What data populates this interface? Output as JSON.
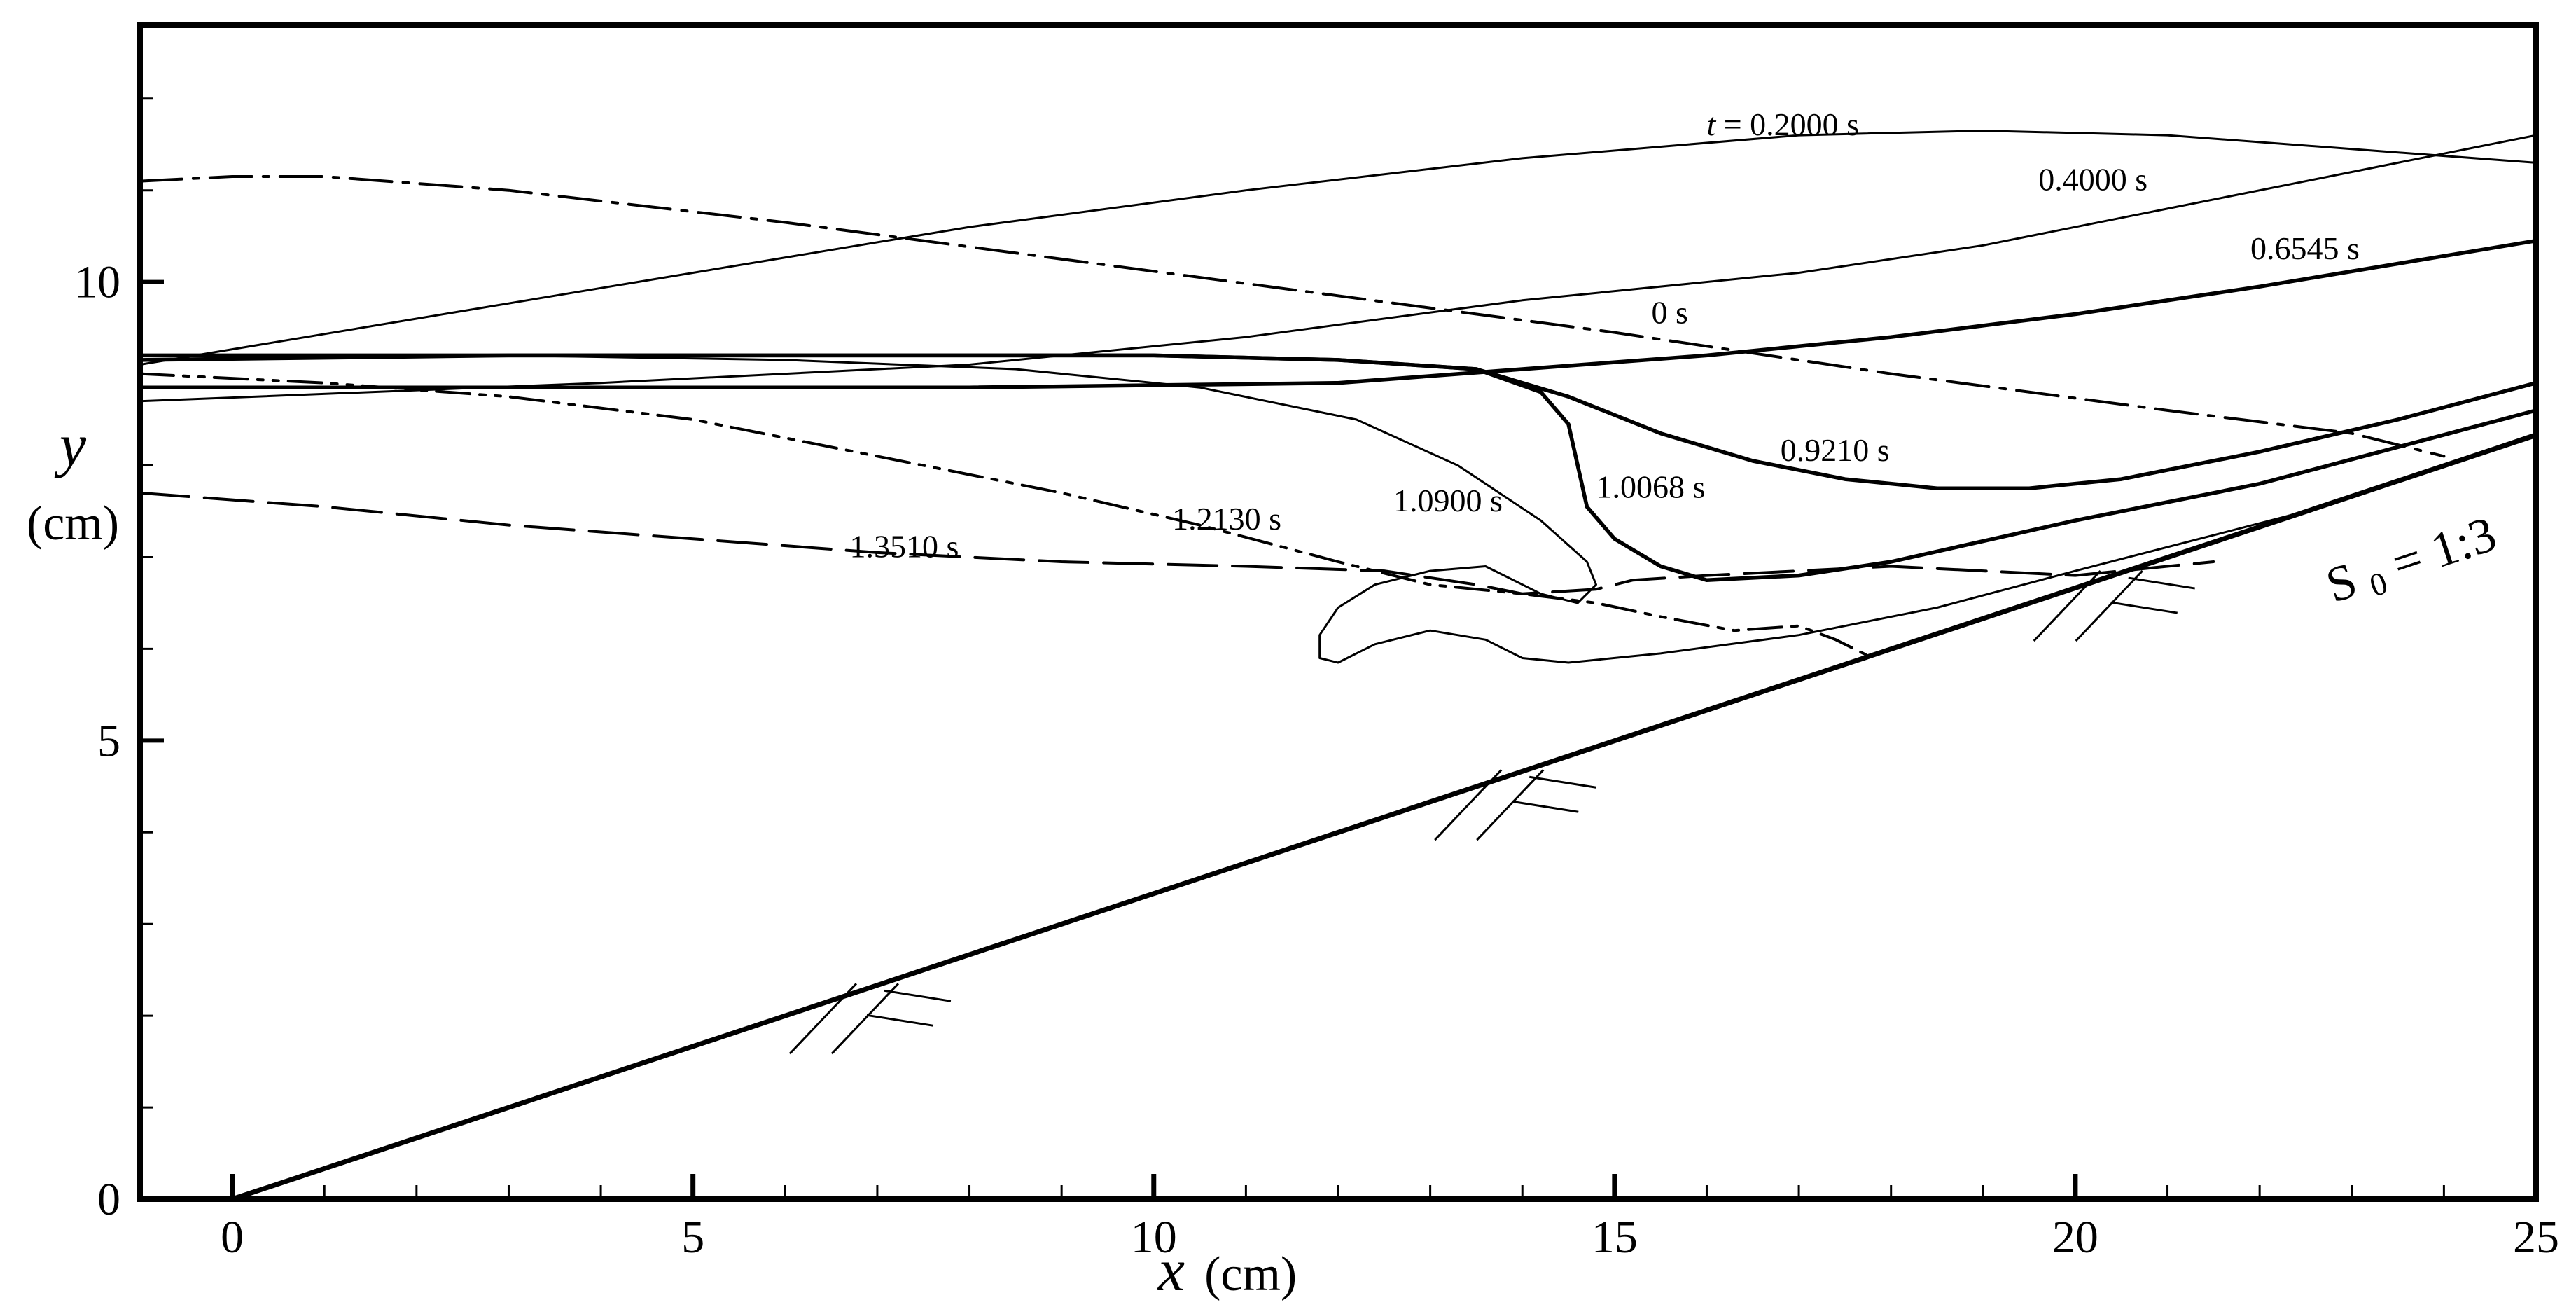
{
  "chart_data": {
    "type": "line",
    "title": "",
    "xlabel": {
      "symbol": "x",
      "unit": "(cm)"
    },
    "ylabel": {
      "symbol": "y",
      "unit": "(cm)"
    },
    "xlim": [
      -1,
      25
    ],
    "ylim": [
      0,
      12.8
    ],
    "xticks": [
      0,
      5,
      10,
      15,
      20,
      25
    ],
    "xtick_labels": [
      "0",
      "5",
      "10",
      "15",
      "20",
      "25"
    ],
    "yticks": [
      0,
      5,
      10
    ],
    "ytick_labels": [
      "0",
      "5",
      "10"
    ],
    "x_minor_step": 1,
    "y_minor_step": 1,
    "grid": false,
    "legend": "none",
    "slope_label": {
      "main": "S",
      "sub": "0",
      "rest": " = 1:3"
    },
    "bed": {
      "name": "slope bed",
      "x": [
        0,
        25
      ],
      "y": [
        0,
        8.33
      ]
    },
    "series": [
      {
        "name": "t = 0.2000  s",
        "label_prefix": "t",
        "label_text": " = 0.2000  s",
        "style": "thin",
        "points": [
          [
            -1,
            9.1
          ],
          [
            2,
            9.6
          ],
          [
            5,
            10.1
          ],
          [
            8,
            10.6
          ],
          [
            11,
            11.0
          ],
          [
            14,
            11.35
          ],
          [
            17,
            11.6
          ],
          [
            19,
            11.65
          ],
          [
            21,
            11.6
          ],
          [
            23,
            11.45
          ],
          [
            25,
            11.3
          ]
        ]
      },
      {
        "name": "0.4000 s",
        "label_text": "0.4000 s",
        "style": "thin",
        "points": [
          [
            -1,
            8.7
          ],
          [
            4,
            8.9
          ],
          [
            8,
            9.1
          ],
          [
            11,
            9.4
          ],
          [
            14,
            9.8
          ],
          [
            17,
            10.1
          ],
          [
            19,
            10.4
          ],
          [
            21,
            10.8
          ],
          [
            23,
            11.2
          ],
          [
            25,
            11.6
          ]
        ]
      },
      {
        "name": "0.6545 s",
        "label_text": "0.6545 s",
        "style": "thick",
        "points": [
          [
            -1,
            8.85
          ],
          [
            3,
            8.85
          ],
          [
            8,
            8.85
          ],
          [
            12,
            8.9
          ],
          [
            14,
            9.05
          ],
          [
            16,
            9.2
          ],
          [
            18,
            9.4
          ],
          [
            20,
            9.65
          ],
          [
            22,
            9.95
          ],
          [
            25,
            10.45
          ]
        ]
      },
      {
        "name": "0 s",
        "label_text": "0 s",
        "style": "dashdot",
        "points": [
          [
            -1,
            11.1
          ],
          [
            0,
            11.15
          ],
          [
            1,
            11.15
          ],
          [
            3,
            11.0
          ],
          [
            6,
            10.65
          ],
          [
            9,
            10.25
          ],
          [
            12,
            9.85
          ],
          [
            15,
            9.45
          ],
          [
            18,
            9.0
          ],
          [
            21,
            8.6
          ],
          [
            23,
            8.35
          ],
          [
            24,
            8.1
          ]
        ]
      },
      {
        "name": "0.9210 s",
        "label_text": "0.9210 s",
        "style": "thick",
        "points": [
          [
            -1,
            9.2
          ],
          [
            3,
            9.2
          ],
          [
            7,
            9.2
          ],
          [
            10,
            9.2
          ],
          [
            12,
            9.15
          ],
          [
            13.5,
            9.05
          ],
          [
            14.5,
            8.75
          ],
          [
            15.5,
            8.35
          ],
          [
            16.5,
            8.05
          ],
          [
            17.5,
            7.85
          ],
          [
            18.5,
            7.75
          ],
          [
            19.5,
            7.75
          ],
          [
            20.5,
            7.85
          ],
          [
            22,
            8.15
          ],
          [
            23.5,
            8.5
          ],
          [
            25,
            8.9
          ]
        ]
      },
      {
        "name": "1.0068 s",
        "label_text": "1.0068 s",
        "style": "thick",
        "points": [
          [
            -1,
            9.15
          ],
          [
            3,
            9.2
          ],
          [
            7,
            9.2
          ],
          [
            10,
            9.2
          ],
          [
            12,
            9.15
          ],
          [
            13.5,
            9.05
          ],
          [
            14.2,
            8.8
          ],
          [
            14.5,
            8.45
          ],
          [
            14.6,
            8.0
          ],
          [
            14.7,
            7.55
          ],
          [
            15.0,
            7.2
          ],
          [
            15.5,
            6.9
          ],
          [
            16,
            6.75
          ],
          [
            17,
            6.8
          ],
          [
            18,
            6.95
          ],
          [
            20,
            7.4
          ],
          [
            22,
            7.8
          ],
          [
            23.5,
            8.2
          ],
          [
            25,
            8.6
          ]
        ]
      },
      {
        "name": "1.0900 s",
        "label_text": "1.0900 s",
        "style": "thin",
        "points": [
          [
            -1,
            9.2
          ],
          [
            3,
            9.2
          ],
          [
            6,
            9.15
          ],
          [
            8.5,
            9.05
          ],
          [
            10.5,
            8.85
          ],
          [
            12.2,
            8.5
          ],
          [
            13.3,
            8.0
          ],
          [
            14.2,
            7.4
          ],
          [
            14.7,
            6.95
          ],
          [
            14.8,
            6.7
          ],
          [
            14.6,
            6.5
          ],
          [
            14.2,
            6.6
          ],
          [
            13.6,
            6.9
          ],
          [
            13.0,
            6.85
          ],
          [
            12.4,
            6.7
          ],
          [
            12.0,
            6.45
          ],
          [
            11.8,
            6.15
          ],
          [
            11.8,
            5.9
          ],
          [
            12.0,
            5.85
          ],
          [
            12.4,
            6.05
          ],
          [
            13.0,
            6.2
          ],
          [
            13.6,
            6.1
          ],
          [
            14.0,
            5.9
          ],
          [
            14.5,
            5.85
          ],
          [
            15.5,
            5.95
          ],
          [
            17,
            6.15
          ],
          [
            18.5,
            6.45
          ],
          [
            20,
            6.85
          ],
          [
            22.5,
            7.5
          ],
          [
            25,
            8.35
          ]
        ]
      },
      {
        "name": "1.2130 s",
        "label_text": "1.2130 s",
        "style": "dashdotdot",
        "points": [
          [
            -1,
            9.0
          ],
          [
            1,
            8.9
          ],
          [
            3,
            8.75
          ],
          [
            5,
            8.5
          ],
          [
            7,
            8.1
          ],
          [
            9,
            7.7
          ],
          [
            10.5,
            7.35
          ],
          [
            12,
            6.95
          ],
          [
            13,
            6.7
          ],
          [
            14,
            6.6
          ],
          [
            14.8,
            6.5
          ],
          [
            15.5,
            6.35
          ],
          [
            16.3,
            6.2
          ],
          [
            17,
            6.25
          ],
          [
            17.4,
            6.1
          ],
          [
            17.8,
            5.9
          ]
        ]
      },
      {
        "name": "1.3510 s",
        "label_text": "1.3510 s",
        "style": "dashed",
        "points": [
          [
            -1,
            7.7
          ],
          [
            1,
            7.55
          ],
          [
            3,
            7.35
          ],
          [
            5,
            7.2
          ],
          [
            7,
            7.05
          ],
          [
            9,
            6.95
          ],
          [
            11,
            6.9
          ],
          [
            12.5,
            6.85
          ],
          [
            13.5,
            6.7
          ],
          [
            14,
            6.6
          ],
          [
            14.8,
            6.65
          ],
          [
            15.2,
            6.75
          ],
          [
            16,
            6.8
          ],
          [
            17,
            6.85
          ],
          [
            18,
            6.9
          ],
          [
            19,
            6.85
          ],
          [
            20,
            6.8
          ],
          [
            20.5,
            6.85
          ],
          [
            21.5,
            6.95
          ]
        ]
      }
    ],
    "annotations": [
      {
        "for": "t = 0.2000  s",
        "x": 16.0,
        "y": 11.6
      },
      {
        "for": "0.4000 s",
        "x": 19.6,
        "y": 11.0
      },
      {
        "for": "0.6545 s",
        "x": 21.9,
        "y": 10.25
      },
      {
        "for": "0 s",
        "x": 15.4,
        "y": 9.55
      },
      {
        "for": "0.9210 s",
        "x": 16.8,
        "y": 8.05
      },
      {
        "for": "1.0068 s",
        "x": 14.8,
        "y": 7.65
      },
      {
        "for": "1.0900 s",
        "x": 12.6,
        "y": 7.5
      },
      {
        "for": "1.2130 s",
        "x": 10.2,
        "y": 7.3
      },
      {
        "for": "1.3510 s",
        "x": 6.7,
        "y": 7.0
      }
    ],
    "hatches": [
      {
        "x": 7.0,
        "y": 2.35
      },
      {
        "x": 14.0,
        "y": 4.68
      },
      {
        "x": 20.5,
        "y": 6.85
      }
    ]
  }
}
